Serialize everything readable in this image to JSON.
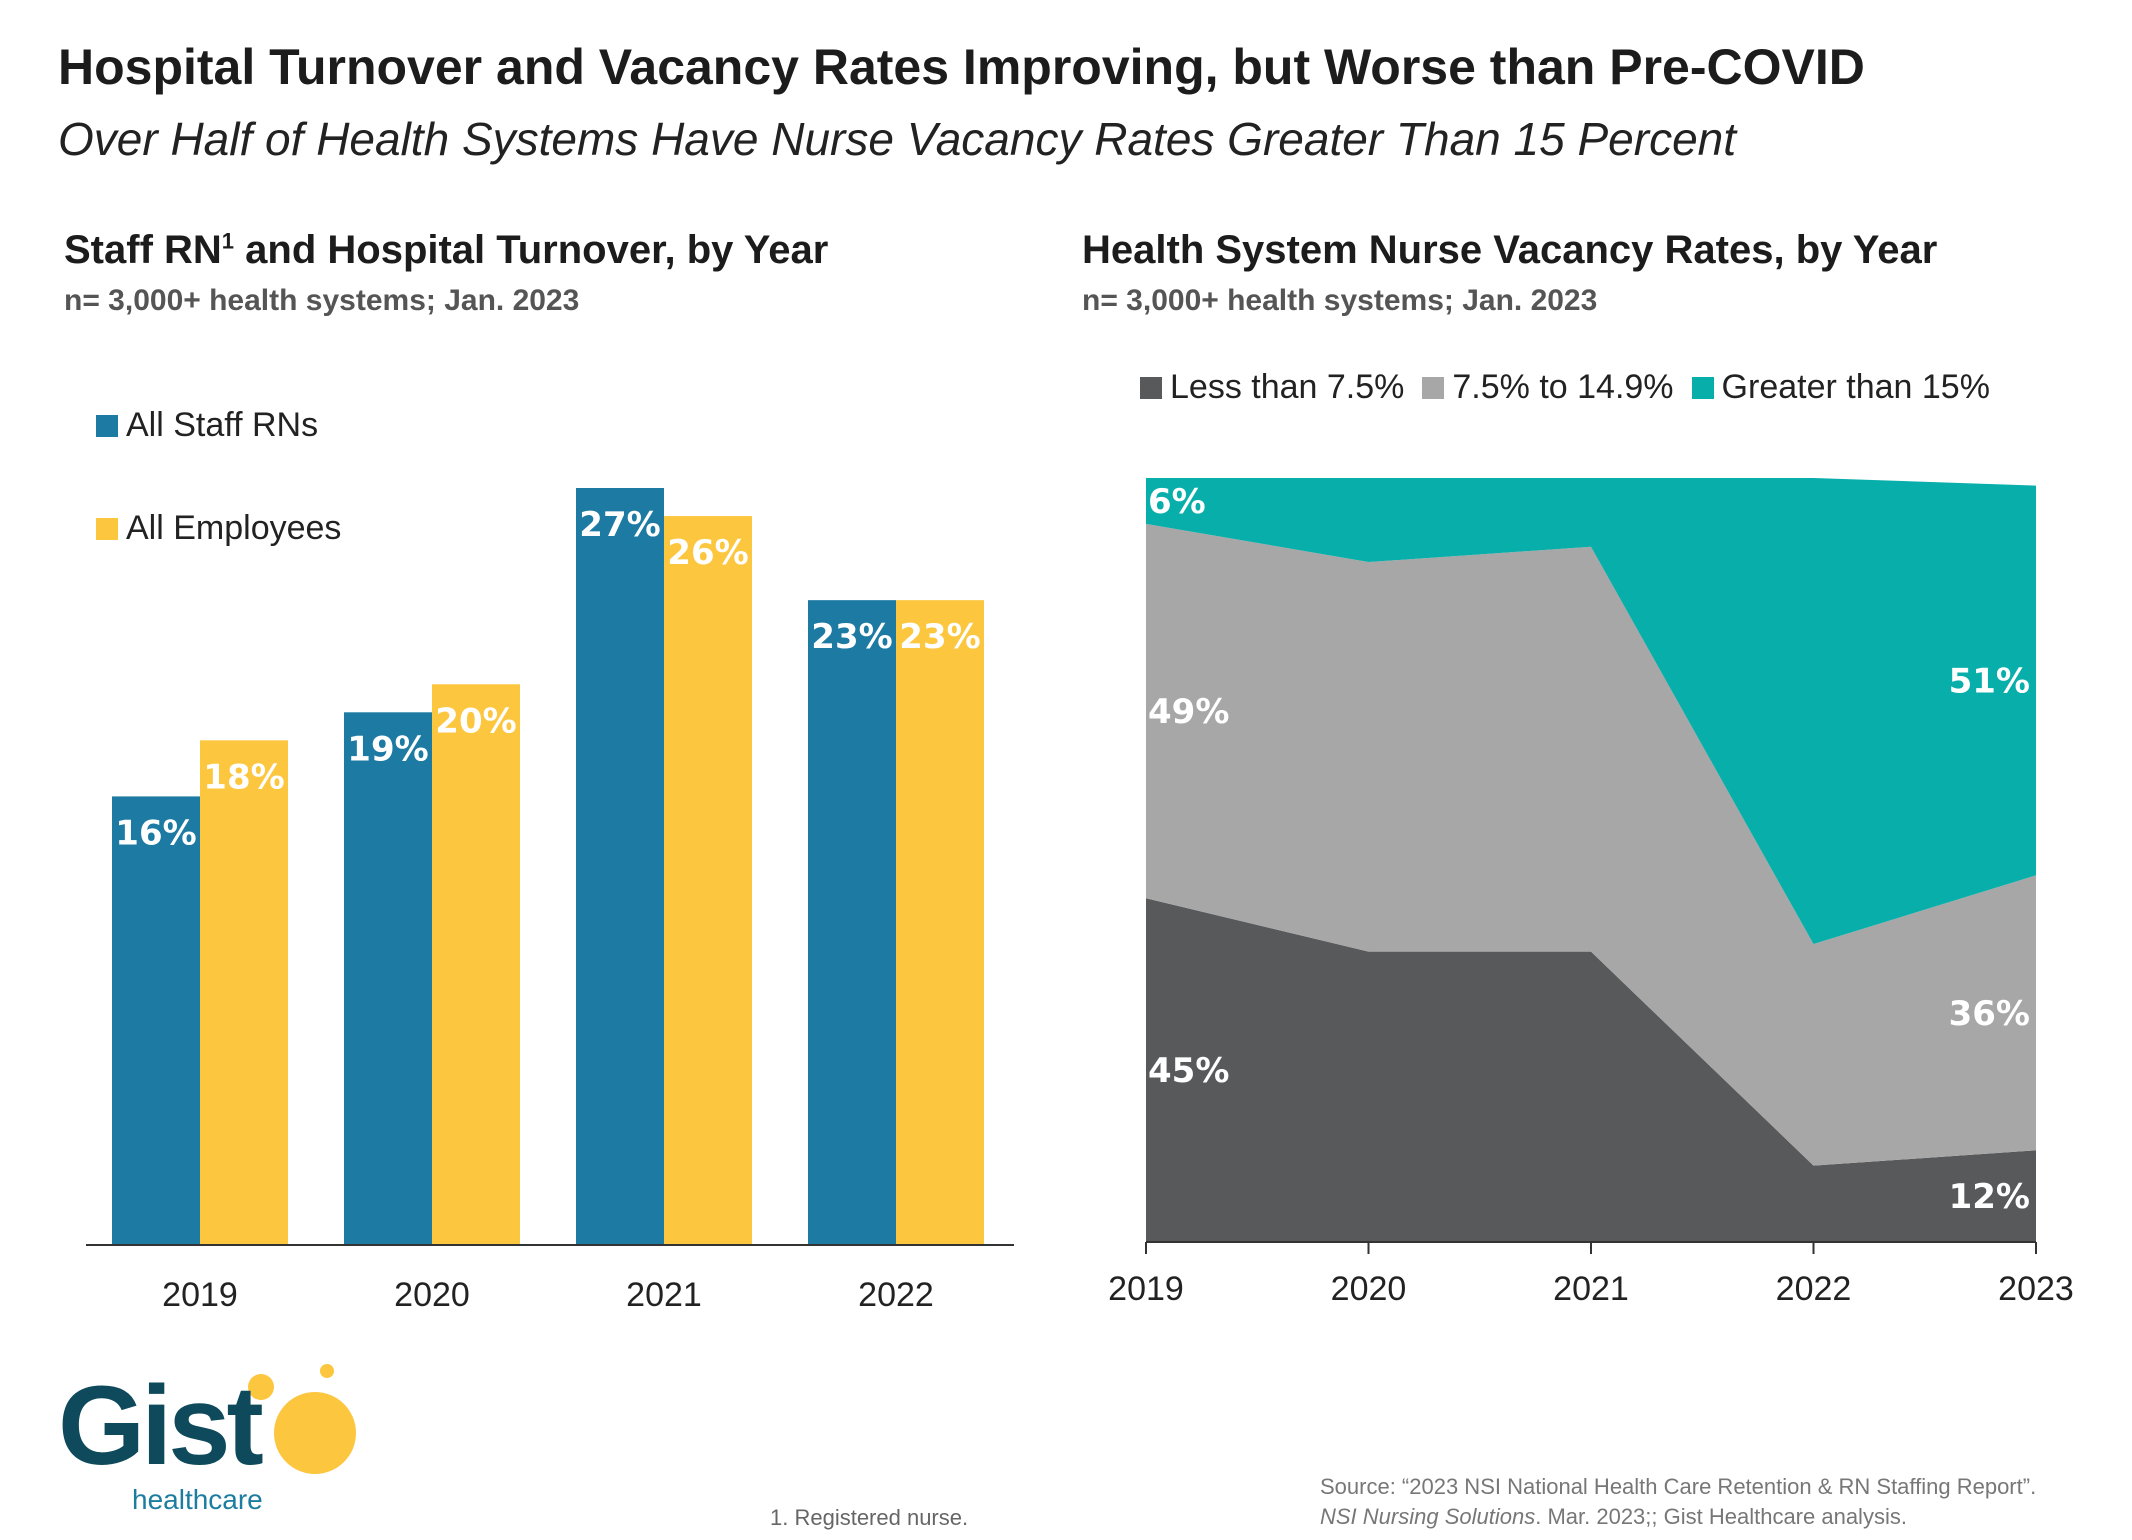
{
  "header": {
    "title": "Hospital Turnover and Vacancy Rates Improving, but Worse than Pre-COVID",
    "subtitle": "Over Half of Health Systems Have Nurse Vacancy Rates Greater Than 15 Percent"
  },
  "left_chart": {
    "title_main": "Staff RN",
    "title_sup": "1",
    "title_rest": " and Hospital Turnover, by Year",
    "sample": "n= 3,000+ health systems; Jan. 2023"
  },
  "right_chart": {
    "title": "Health System Nurse Vacancy Rates, by Year",
    "sample": "n= 3,000+ health systems; Jan. 2023"
  },
  "colors": {
    "rn": "#1c7aa3",
    "employees": "#fcc63f",
    "less_than_7_5": "#58595b",
    "mid_band": "#a6a7a6",
    "greater_than_15": "#07aeaa"
  },
  "chart_data": [
    {
      "type": "bar",
      "categories": [
        "2019",
        "2020",
        "2021",
        "2022"
      ],
      "series": [
        {
          "name": "All Staff RNs",
          "values": [
            16,
            19,
            27,
            23
          ],
          "labels": [
            "16%",
            "19%",
            "27%",
            "23%"
          ]
        },
        {
          "name": "All Employees",
          "values": [
            18,
            20,
            26,
            23
          ],
          "labels": [
            "18%",
            "20%",
            "26%",
            "23%"
          ]
        }
      ],
      "ylim": [
        0,
        27
      ],
      "legend_position": "top-left"
    },
    {
      "type": "area",
      "x": [
        "2019",
        "2020",
        "2021",
        "2022",
        "2023"
      ],
      "stacked": true,
      "series": [
        {
          "name": "Less than 7.5%",
          "values": [
            45,
            38,
            38,
            10,
            12
          ]
        },
        {
          "name": "7.5% to 14.9%",
          "values": [
            49,
            51,
            53,
            29,
            36
          ]
        },
        {
          "name": "Greater than 15%",
          "values": [
            6,
            11,
            9,
            61,
            51
          ]
        }
      ],
      "labels": [
        {
          "series": "Greater than 15%",
          "x": "2019",
          "text": "6%"
        },
        {
          "series": "7.5% to 14.9%",
          "x": "2019",
          "text": "49%"
        },
        {
          "series": "Less than 7.5%",
          "x": "2019",
          "text": "45%"
        },
        {
          "series": "Greater than 15%",
          "x": "2023",
          "text": "51%"
        },
        {
          "series": "7.5% to 14.9%",
          "x": "2023",
          "text": "36%"
        },
        {
          "series": "Less than 7.5%",
          "x": "2023",
          "text": "12%"
        }
      ],
      "ylim": [
        0,
        100
      ],
      "legend_position": "top"
    }
  ],
  "footnote": "1.  Registered nurse.",
  "source": {
    "line1": "Source: “2023 NSI National Health Care Retention & RN Staffing Report”.",
    "line2_italic": "NSI Nursing Solutions",
    "line2_rest": ". Mar. 2023;; Gist Healthcare analysis."
  },
  "logo": {
    "word": "Gist",
    "sub": "healthcare"
  }
}
